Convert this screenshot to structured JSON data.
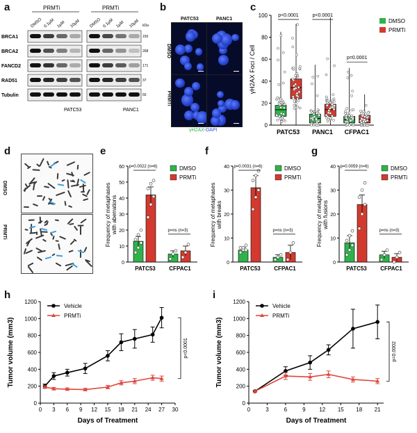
{
  "panels": {
    "a": {
      "label": "a",
      "treatment_header": "PRMTi",
      "conditions": [
        "DMSO",
        "0.1µM",
        "1µM",
        "10µM"
      ],
      "rows": [
        {
          "name": "BRCA1",
          "kda": "150"
        },
        {
          "name": "BRCA2",
          "kda": "268"
        },
        {
          "name": "FANCD2",
          "kda": "171"
        },
        {
          "name": "RAD51",
          "kda": "37"
        },
        {
          "name": "Tubulin",
          "kda": "55"
        }
      ],
      "kda_header": "kDa",
      "cell_lines": [
        "PATC53",
        "PANC1"
      ],
      "band_intensity": {
        "PATC53": [
          [
            1.0,
            0.8,
            0.6,
            0.3
          ],
          [
            1.0,
            0.7,
            0.5,
            0.25
          ],
          [
            1.0,
            0.85,
            0.6,
            0.3
          ],
          [
            1.0,
            0.9,
            0.8,
            0.7
          ],
          [
            1.0,
            1.0,
            1.0,
            1.0
          ]
        ],
        "PANC1": [
          [
            1.0,
            0.75,
            0.55,
            0.3
          ],
          [
            1.0,
            0.6,
            0.4,
            0.2
          ],
          [
            1.0,
            0.8,
            0.65,
            0.35
          ],
          [
            1.0,
            0.9,
            0.8,
            0.7
          ],
          [
            1.0,
            1.0,
            1.0,
            1.0
          ]
        ]
      }
    },
    "b": {
      "label": "b",
      "cols": [
        "PATC53",
        "PANC1"
      ],
      "rows": [
        "DMSO",
        "PRMTi"
      ],
      "stain_label_green": "γH2AX",
      "stain_label_rest": "-DAPI"
    },
    "c": {
      "label": "c"
    },
    "d": {
      "label": "d",
      "rows": [
        "DMSO",
        "PRMTi"
      ]
    },
    "e": {
      "label": "e"
    },
    "f": {
      "label": "f"
    },
    "g": {
      "label": "g"
    },
    "h": {
      "label": "h"
    },
    "i": {
      "label": "i"
    }
  },
  "colors": {
    "dmso": "#2fb24a",
    "prmti": "#d23a2f",
    "vehicle": "#000000",
    "prmti_line": "#e0443a"
  },
  "chart_data": [
    {
      "id": "c",
      "type": "box",
      "ylabel": "γH2AX Foci / Cell",
      "ylim": [
        0,
        100
      ],
      "yticks": [
        0,
        20,
        40,
        60,
        80,
        100
      ],
      "categories": [
        "PATC53",
        "PANC1",
        "CFPAC1"
      ],
      "legend": [
        "DMSO",
        "PRMTi"
      ],
      "series": [
        {
          "name": "DMSO",
          "boxes": [
            {
              "min": 0,
              "q1": 8,
              "median": 14,
              "q3": 18,
              "max": 85
            },
            {
              "min": 0,
              "q1": 2,
              "median": 6,
              "q3": 10,
              "max": 55
            },
            {
              "min": 0,
              "q1": 2,
              "median": 5,
              "q3": 8,
              "max": 52
            }
          ]
        },
        {
          "name": "PRMTi",
          "boxes": [
            {
              "min": 0,
              "q1": 24,
              "median": 34,
              "q3": 42,
              "max": 92
            },
            {
              "min": 0,
              "q1": 8,
              "median": 14,
              "q3": 19,
              "max": 98
            },
            {
              "min": 0,
              "q1": 2,
              "median": 5,
              "q3": 9,
              "max": 28
            }
          ]
        }
      ],
      "annotations": [
        {
          "text": "p<0.0001",
          "between": "PATC53"
        },
        {
          "text": "p<0.0001",
          "between": "PANC1"
        },
        {
          "text": "p=0.0001",
          "between": "CFPAC1"
        }
      ]
    },
    {
      "id": "e",
      "type": "bar",
      "ylabel": "Frequency of metaphases with aberrations",
      "ylim": [
        0,
        60
      ],
      "yticks": [
        0,
        10,
        20,
        30,
        40,
        50,
        60
      ],
      "categories": [
        "PATC53",
        "CFPAC1"
      ],
      "legend": [
        "DMSO",
        "PRMTi"
      ],
      "series": [
        {
          "name": "DMSO",
          "values": [
            13,
            5
          ],
          "err": [
            3,
            2
          ],
          "points": [
            [
              6,
              9,
              12,
              14,
              17,
              20
            ],
            [
              2,
              5,
              7
            ]
          ]
        },
        {
          "name": "PRMTi",
          "values": [
            42,
            7
          ],
          "err": [
            5,
            3
          ],
          "points": [
            [
              28,
              36,
              41,
              46,
              49,
              51
            ],
            [
              3,
              6,
              11
            ]
          ]
        }
      ],
      "annotations": [
        "p=0.0022 (n=6)",
        "p=ns (n=3)"
      ]
    },
    {
      "id": "f",
      "type": "bar",
      "ylabel": "Frequency of metaphases with breaks",
      "ylim": [
        0,
        40
      ],
      "yticks": [
        0,
        10,
        20,
        30,
        40
      ],
      "categories": [
        "PATC53",
        "CFPAC1"
      ],
      "legend": [
        "DMSO",
        "PRMTi"
      ],
      "series": [
        {
          "name": "DMSO",
          "values": [
            5,
            2
          ],
          "err": [
            1,
            1
          ],
          "points": [
            [
              4,
              5,
              5,
              6,
              6,
              7
            ],
            [
              1,
              2,
              3
            ]
          ]
        },
        {
          "name": "PRMTi",
          "values": [
            31,
            4
          ],
          "err": [
            5,
            3
          ],
          "points": [
            [
              22,
              27,
              30,
              34,
              36,
              38
            ],
            [
              1,
              4,
              8
            ]
          ]
        }
      ],
      "annotations": [
        "p=0.0031 (n=6)",
        "p=ns (n=3)"
      ]
    },
    {
      "id": "g",
      "type": "bar",
      "ylabel": "Frequency of metaphases with fusions",
      "ylim": [
        0,
        40
      ],
      "yticks": [
        0,
        10,
        20,
        30,
        40
      ],
      "categories": [
        "PATC53",
        "CFPAC1"
      ],
      "legend": [
        "DMSO",
        "PRMTi"
      ],
      "series": [
        {
          "name": "DMSO",
          "values": [
            8,
            3
          ],
          "err": [
            3,
            1.5
          ],
          "points": [
            [
              3,
              5,
              7,
              9,
              11,
              13
            ],
            [
              1,
              3,
              5
            ]
          ]
        },
        {
          "name": "PRMTi",
          "values": [
            24,
            2
          ],
          "err": [
            4,
            1.5
          ],
          "points": [
            [
              14,
              20,
              24,
              27,
              30,
              33
            ],
            [
              0,
              2,
              4
            ]
          ]
        }
      ],
      "annotations": [
        "p=0.0059 (n=6)",
        "p=ns (n=3)"
      ]
    },
    {
      "id": "h",
      "type": "line",
      "xlabel": "Days of Treatment",
      "ylabel": "Tumor volume (mm3)",
      "xlim": [
        0,
        30
      ],
      "ylim": [
        0,
        1200
      ],
      "xticks": [
        0,
        3,
        6,
        9,
        12,
        15,
        18,
        21,
        24,
        27,
        30
      ],
      "yticks": [
        0,
        200,
        400,
        600,
        800,
        1000,
        1200
      ],
      "series": [
        {
          "name": "Vehicle",
          "x": [
            1,
            3,
            6,
            10,
            15,
            18,
            21,
            25,
            27
          ],
          "y": [
            200,
            320,
            360,
            410,
            560,
            720,
            760,
            810,
            1010
          ],
          "err": [
            25,
            40,
            40,
            60,
            60,
            100,
            110,
            90,
            120
          ]
        },
        {
          "name": "PRMTi",
          "x": [
            1,
            3,
            6,
            10,
            15,
            18,
            21,
            25,
            27
          ],
          "y": [
            190,
            170,
            165,
            160,
            190,
            240,
            260,
            300,
            290
          ],
          "err": [
            15,
            15,
            15,
            15,
            20,
            25,
            30,
            30,
            30
          ]
        }
      ],
      "annotation": "p<0.0001"
    },
    {
      "id": "i",
      "type": "line",
      "xlabel": "Days of Treatment",
      "ylabel": "Tumor volume (mm3)",
      "xlim": [
        0,
        22
      ],
      "ylim": [
        0,
        1200
      ],
      "xticks": [
        0,
        3,
        6,
        9,
        12,
        15,
        18,
        21
      ],
      "yticks": [
        0,
        200,
        400,
        600,
        800,
        1000,
        1200
      ],
      "series": [
        {
          "name": "Vehicle",
          "x": [
            1,
            6,
            10,
            13,
            17,
            21
          ],
          "y": [
            140,
            380,
            480,
            630,
            880,
            960
          ],
          "err": [
            10,
            50,
            80,
            60,
            230,
            200
          ]
        },
        {
          "name": "PRMTi",
          "x": [
            1,
            6,
            10,
            13,
            17,
            21
          ],
          "y": [
            140,
            320,
            310,
            340,
            280,
            260
          ],
          "err": [
            10,
            40,
            40,
            40,
            30,
            30
          ]
        }
      ],
      "annotation": "p=0.0002"
    }
  ]
}
